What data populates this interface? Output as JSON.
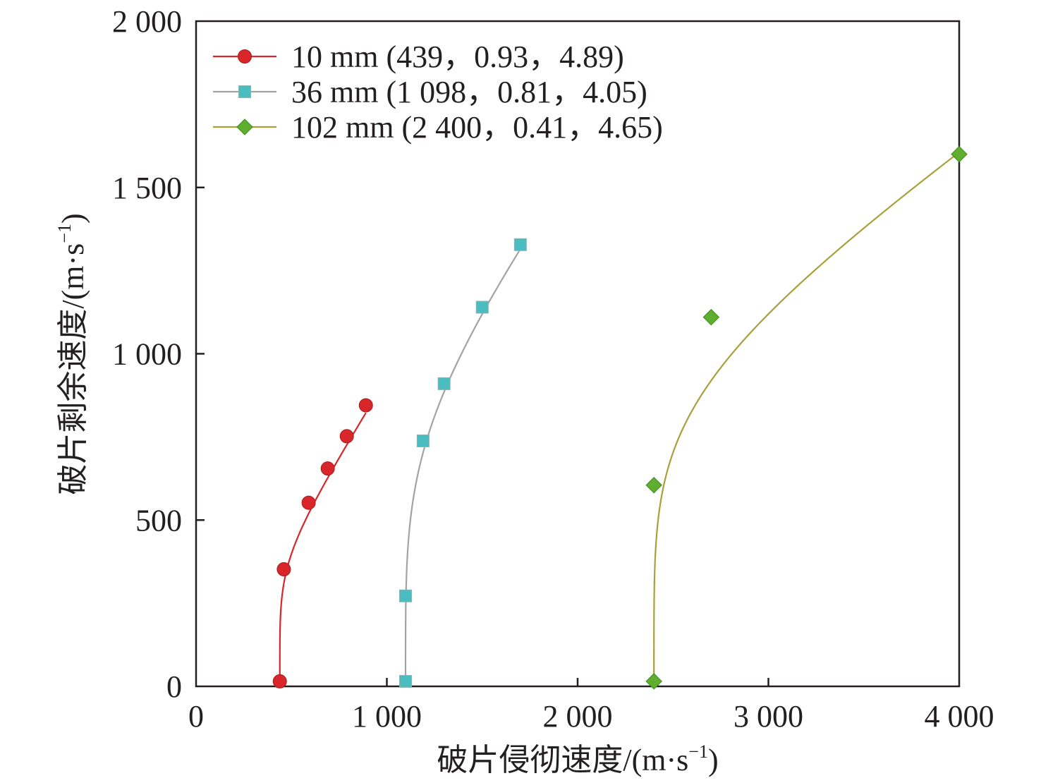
{
  "chart_data": {
    "type": "line",
    "xlabel": "破片侵彻速度/(m·s",
    "ylabel": "破片剩余速度/(m·s",
    "unit_exponent": "−1",
    "unit_close": ")",
    "xlim": [
      0,
      4000
    ],
    "ylim": [
      0,
      2000
    ],
    "x_ticks": [
      0,
      1000,
      2000,
      3000,
      4000
    ],
    "x_tick_labels": [
      "0",
      "1 000",
      "2 000",
      "3 000",
      "4 000"
    ],
    "y_ticks": [
      0,
      500,
      1000,
      1500,
      2000
    ],
    "y_tick_labels": [
      "0",
      "500",
      "1 000",
      "1 500",
      "2 000"
    ],
    "grid": false,
    "legend_position": "top-left",
    "series": [
      {
        "name": "10 mm (439，0.93，4.89)",
        "marker": "circle",
        "color": "#d9262b",
        "line_color": "#d9262b",
        "points": [
          [
            439,
            15
          ],
          [
            460,
            352
          ],
          [
            590,
            552
          ],
          [
            690,
            655
          ],
          [
            790,
            752
          ],
          [
            890,
            845
          ]
        ],
        "curve": {
          "v_limit": 439,
          "a": 0.93,
          "p": 4.89,
          "x_max": 890
        }
      },
      {
        "name": "36 mm (1 098，0.81，4.05)",
        "marker": "square",
        "color": "#4bbcc0",
        "line_color": "#a3a3a3",
        "points": [
          [
            1098,
            15
          ],
          [
            1098,
            272
          ],
          [
            1190,
            738
          ],
          [
            1300,
            910
          ],
          [
            1500,
            1140
          ],
          [
            1700,
            1328
          ]
        ],
        "curve": {
          "v_limit": 1098,
          "a": 0.81,
          "p": 4.05,
          "x_max": 1700
        }
      },
      {
        "name": "102 mm (2 400，0.41，4.65)",
        "marker": "diamond",
        "color": "#5fae2e",
        "line_color": "#a8a03a",
        "points": [
          [
            2400,
            15
          ],
          [
            2400,
            605
          ],
          [
            2700,
            1110
          ],
          [
            4000,
            1600
          ]
        ],
        "curve": {
          "v_limit": 2400,
          "a": 0.41,
          "p": 4.65,
          "x_max": 4000
        }
      }
    ]
  }
}
